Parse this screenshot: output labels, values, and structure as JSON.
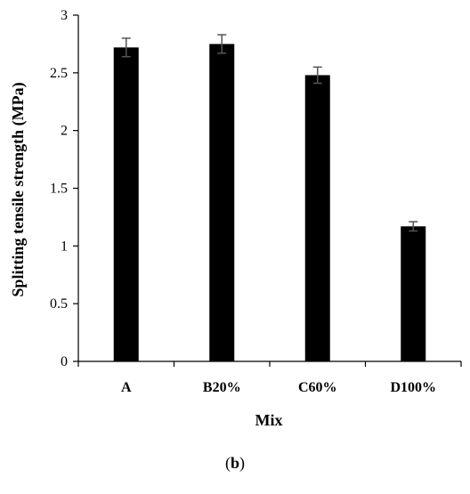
{
  "chart_data": {
    "type": "bar",
    "categories": [
      "A",
      "B20%",
      "C60%",
      "D100%"
    ],
    "values": [
      2.72,
      2.75,
      2.48,
      1.17
    ],
    "error": [
      0.08,
      0.08,
      0.07,
      0.04
    ],
    "xlabel": "Mix",
    "ylabel": "Splitting tensile strength (MPa)",
    "ylim": [
      0,
      3
    ],
    "yticks": [
      0,
      0.5,
      1,
      1.5,
      2,
      2.5,
      3
    ],
    "ytick_labels": [
      "0",
      "0.5",
      "1",
      "1.5",
      "2",
      "2.5",
      "3"
    ],
    "grid": false,
    "legend": "none",
    "bar_color": "#000000",
    "error_color": "#555555"
  },
  "panel": {
    "open": "(",
    "letter": "b",
    "close": ")"
  }
}
